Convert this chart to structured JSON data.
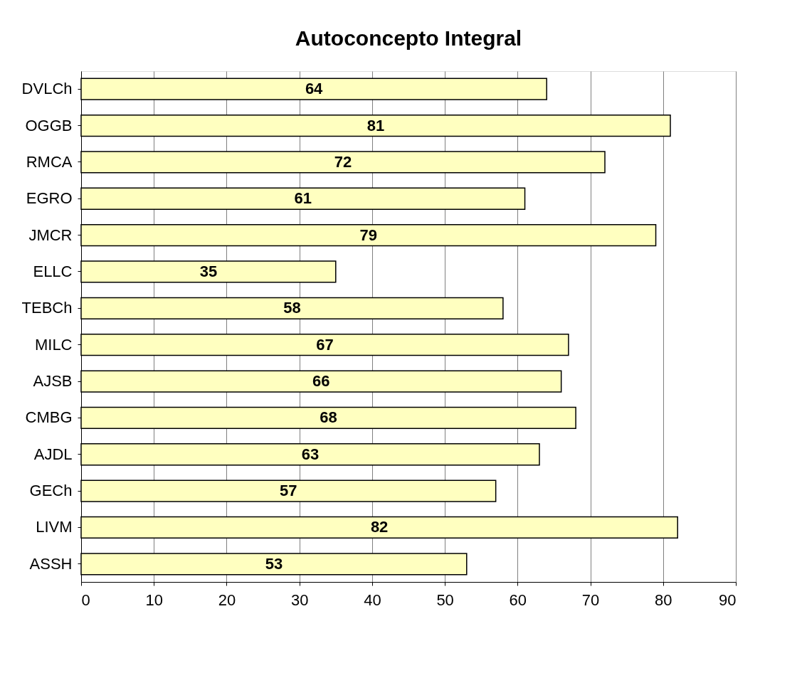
{
  "chart_data": {
    "type": "bar",
    "orientation": "horizontal",
    "title": "Autoconcepto Integral",
    "categories": [
      "DVLCh",
      "OGGB",
      "RMCA",
      "EGRO",
      "JMCR",
      "ELLC",
      "TEBCh",
      "MILC",
      "AJSB",
      "CMBG",
      "AJDL",
      "GECh",
      "LIVM",
      "ASSH"
    ],
    "values": [
      64,
      81,
      72,
      61,
      79,
      35,
      58,
      67,
      66,
      68,
      63,
      57,
      82,
      53
    ],
    "color": "#ffffc0",
    "xlim": [
      0,
      90
    ],
    "xticks": [
      0,
      10,
      20,
      30,
      40,
      50,
      60,
      70,
      80,
      90
    ],
    "grid": "x",
    "data_labels": true
  }
}
